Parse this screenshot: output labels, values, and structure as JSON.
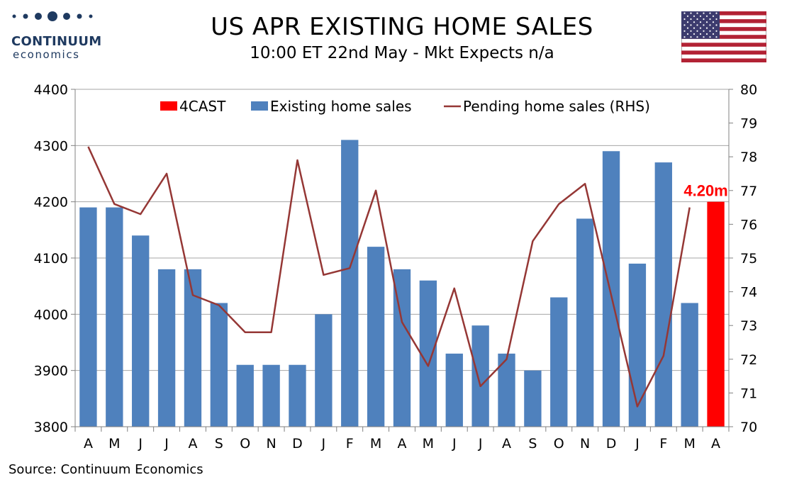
{
  "header": {
    "title": "US APR EXISTING HOME SALES",
    "subtitle": "10:00 ET 22nd May - Mkt Expects n/a"
  },
  "logo": {
    "name": "CONTINUUM",
    "sub": "economics",
    "color": "#1f3a60"
  },
  "flag": {
    "icon": "us-flag-icon"
  },
  "source": "Source: Continuum Economics",
  "chart_data": {
    "type": "bar",
    "categories": [
      "A",
      "M",
      "J",
      "J",
      "A",
      "S",
      "O",
      "N",
      "D",
      "J",
      "F",
      "M",
      "A",
      "M",
      "J",
      "J",
      "A",
      "S",
      "O",
      "N",
      "D",
      "J",
      "F",
      "M",
      "A"
    ],
    "series": [
      {
        "name": "4CAST",
        "kind": "bar",
        "axis": "left",
        "color": "#ff0000",
        "values": [
          null,
          null,
          null,
          null,
          null,
          null,
          null,
          null,
          null,
          null,
          null,
          null,
          null,
          null,
          null,
          null,
          null,
          null,
          null,
          null,
          null,
          null,
          null,
          null,
          4200
        ]
      },
      {
        "name": "Existing home sales",
        "kind": "bar",
        "axis": "left",
        "color": "#4f81bd",
        "values": [
          4190,
          4190,
          4140,
          4080,
          4080,
          4020,
          3910,
          3910,
          3910,
          4000,
          4310,
          4120,
          4080,
          4060,
          3930,
          3980,
          3930,
          3900,
          4030,
          4170,
          4290,
          4090,
          4270,
          4020,
          null
        ]
      },
      {
        "name": "Pending home sales (RHS)",
        "kind": "line",
        "axis": "right",
        "color": "#953735",
        "values": [
          78.3,
          76.6,
          76.3,
          77.5,
          73.9,
          73.6,
          72.8,
          72.8,
          77.9,
          74.5,
          74.7,
          77.0,
          73.1,
          71.8,
          74.1,
          71.2,
          72.0,
          75.5,
          76.6,
          77.2,
          73.9,
          70.6,
          72.1,
          76.5,
          null
        ]
      }
    ],
    "ylim_left": [
      3800,
      4400
    ],
    "yticks_left": [
      3800,
      3900,
      4000,
      4100,
      4200,
      4300,
      4400
    ],
    "ylim_right": [
      70,
      80
    ],
    "yticks_right": [
      70,
      71,
      72,
      73,
      74,
      75,
      76,
      77,
      78,
      79,
      80
    ],
    "annotation": {
      "text": "4.20m",
      "category_index": 24,
      "value": 4200
    },
    "grid": "horizontal",
    "legend_position": "top"
  }
}
